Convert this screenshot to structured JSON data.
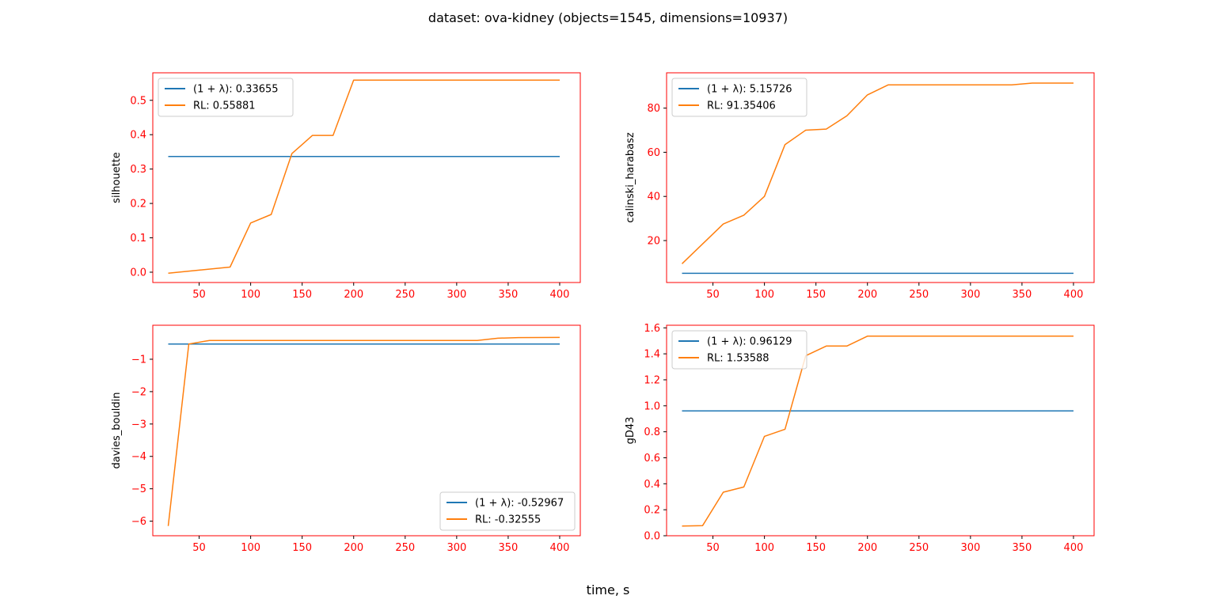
{
  "figure": {
    "suptitle": "dataset: ova-kidney (objects=1545, dimensions=10937)",
    "xlabel": "time, s"
  },
  "colors": {
    "baseline": "#1f77b4",
    "rl": "#ff7f0e",
    "frame": "#ff0000",
    "ticks": "#ff0000"
  },
  "chart_data": [
    {
      "type": "line",
      "ylabel": "silhouette",
      "xlim": [
        5,
        420
      ],
      "ylim": [
        -0.03,
        0.58
      ],
      "xticks": [
        50,
        100,
        150,
        200,
        250,
        300,
        350,
        400
      ],
      "yticks": [
        0.0,
        0.1,
        0.2,
        0.3,
        0.4,
        0.5
      ],
      "ytick_labels": [
        "0.0",
        "0.1",
        "0.2",
        "0.3",
        "0.4",
        "0.5"
      ],
      "legend_loc": "upper-left",
      "series": [
        {
          "name": "(1 + λ): 0.33655",
          "color": "#1f77b4",
          "points": [
            [
              20,
              0.33655
            ],
            [
              400,
              0.33655
            ]
          ]
        },
        {
          "name": "RL: 0.55881",
          "color": "#ff7f0e",
          "points": [
            [
              20,
              -0.003
            ],
            [
              80,
              0.015
            ],
            [
              100,
              0.143
            ],
            [
              120,
              0.168
            ],
            [
              140,
              0.345
            ],
            [
              160,
              0.398
            ],
            [
              180,
              0.398
            ],
            [
              200,
              0.5588
            ],
            [
              400,
              0.5588
            ]
          ]
        }
      ]
    },
    {
      "type": "line",
      "ylabel": "calinski_harabasz",
      "xlim": [
        5,
        420
      ],
      "ylim": [
        1,
        96
      ],
      "xticks": [
        50,
        100,
        150,
        200,
        250,
        300,
        350,
        400
      ],
      "yticks": [
        20,
        40,
        60,
        80
      ],
      "ytick_labels": [
        "20",
        "40",
        "60",
        "80"
      ],
      "legend_loc": "upper-left",
      "series": [
        {
          "name": "(1 + λ): 5.15726",
          "color": "#1f77b4",
          "points": [
            [
              20,
              5.157
            ],
            [
              400,
              5.157
            ]
          ]
        },
        {
          "name": "RL: 91.35406",
          "color": "#ff7f0e",
          "points": [
            [
              20,
              9.5
            ],
            [
              60,
              27.5
            ],
            [
              80,
              31.5
            ],
            [
              100,
              40
            ],
            [
              120,
              63.5
            ],
            [
              140,
              70
            ],
            [
              160,
              70.5
            ],
            [
              180,
              76.5
            ],
            [
              200,
              86
            ],
            [
              220,
              90.5
            ],
            [
              340,
              90.5
            ],
            [
              360,
              91.35
            ],
            [
              400,
              91.35
            ]
          ]
        }
      ]
    },
    {
      "type": "line",
      "ylabel": "davies_bouldin",
      "xlim": [
        5,
        420
      ],
      "ylim": [
        -6.45,
        0.05
      ],
      "xticks": [
        50,
        100,
        150,
        200,
        250,
        300,
        350,
        400
      ],
      "yticks": [
        -1,
        -2,
        -3,
        -4,
        -5,
        -6
      ],
      "ytick_labels": [
        "−1",
        "−2",
        "−3",
        "−4",
        "−5",
        "−6"
      ],
      "legend_loc": "lower-right",
      "series": [
        {
          "name": "(1 + λ): -0.52967",
          "color": "#1f77b4",
          "points": [
            [
              20,
              -0.5297
            ],
            [
              400,
              -0.5297
            ]
          ]
        },
        {
          "name": "RL: -0.32555",
          "color": "#ff7f0e",
          "points": [
            [
              20,
              -6.15
            ],
            [
              40,
              -0.53
            ],
            [
              60,
              -0.42
            ],
            [
              320,
              -0.42
            ],
            [
              340,
              -0.35
            ],
            [
              360,
              -0.33
            ],
            [
              400,
              -0.3256
            ]
          ]
        }
      ]
    },
    {
      "type": "line",
      "ylabel": "gD43",
      "xlim": [
        5,
        420
      ],
      "ylim": [
        0.0,
        1.62
      ],
      "xticks": [
        50,
        100,
        150,
        200,
        250,
        300,
        350,
        400
      ],
      "yticks": [
        0.0,
        0.2,
        0.4,
        0.6,
        0.8,
        1.0,
        1.2,
        1.4,
        1.6
      ],
      "ytick_labels": [
        "0.0",
        "0.2",
        "0.4",
        "0.6",
        "0.8",
        "1.0",
        "1.2",
        "1.4",
        "1.6"
      ],
      "legend_loc": "upper-left",
      "series": [
        {
          "name": "(1 + λ): 0.96129",
          "color": "#1f77b4",
          "points": [
            [
              20,
              0.9613
            ],
            [
              400,
              0.9613
            ]
          ]
        },
        {
          "name": "RL: 1.53588",
          "color": "#ff7f0e",
          "points": [
            [
              20,
              0.075
            ],
            [
              40,
              0.078
            ],
            [
              60,
              0.335
            ],
            [
              80,
              0.375
            ],
            [
              100,
              0.765
            ],
            [
              120,
              0.82
            ],
            [
              140,
              1.385
            ],
            [
              160,
              1.46
            ],
            [
              180,
              1.46
            ],
            [
              200,
              1.536
            ],
            [
              400,
              1.536
            ]
          ]
        }
      ]
    }
  ]
}
